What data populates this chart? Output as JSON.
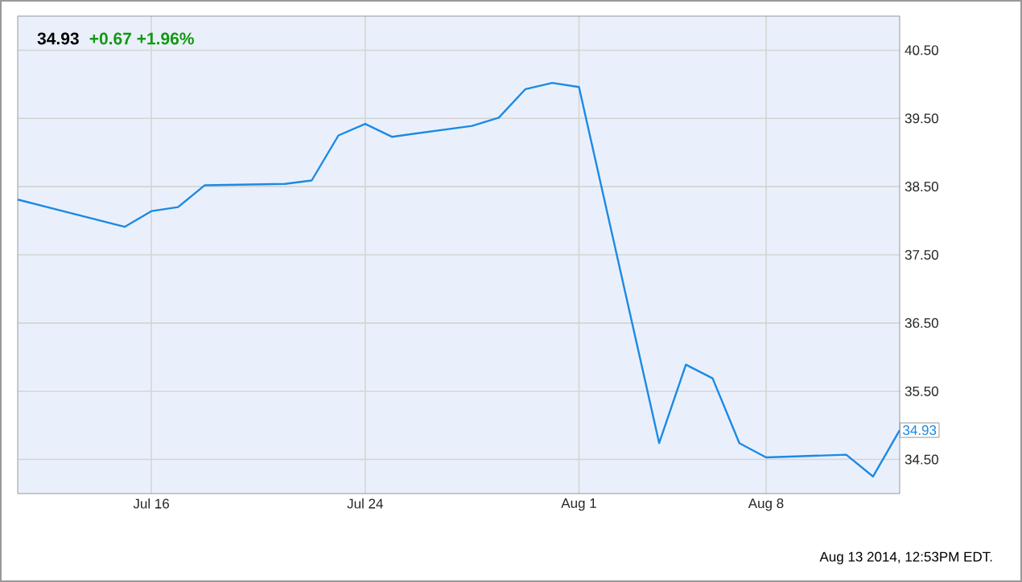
{
  "chart_data": {
    "type": "line",
    "title": "34.93",
    "subtitle": "+0.67  +1.96%",
    "annotations": [
      "Aug 13 2014, 12:53PM EDT."
    ],
    "x": [
      "2014-07-11",
      "2014-07-15",
      "2014-07-16",
      "2014-07-17",
      "2014-07-18",
      "2014-07-21",
      "2014-07-22",
      "2014-07-23",
      "2014-07-24",
      "2014-07-25",
      "2014-07-28",
      "2014-07-29",
      "2014-07-30",
      "2014-07-31",
      "2014-08-01",
      "2014-08-04",
      "2014-08-05",
      "2014-08-06",
      "2014-08-07",
      "2014-08-08",
      "2014-08-11",
      "2014-08-12",
      "2014-08-13"
    ],
    "values": [
      38.31,
      37.91,
      38.14,
      38.2,
      38.52,
      38.54,
      38.59,
      39.25,
      39.42,
      39.23,
      39.39,
      39.51,
      39.93,
      40.02,
      39.96,
      34.74,
      35.89,
      35.69,
      34.74,
      34.53,
      34.57,
      34.25,
      34.93
    ],
    "value_labels": [
      null,
      null,
      null,
      null,
      null,
      null,
      null,
      null,
      null,
      null,
      null,
      null,
      null,
      null,
      null,
      null,
      null,
      null,
      null,
      null,
      null,
      null,
      "34.93"
    ],
    "color": "#1a8ae6",
    "xlim": [
      "2014-07-11",
      "2014-08-13"
    ],
    "xticks": [
      {
        "value": "2014-07-16",
        "label": "Jul 16"
      },
      {
        "value": "2014-07-24",
        "label": "Jul 24"
      },
      {
        "value": "2014-08-01",
        "label": "Aug 1"
      },
      {
        "value": "2014-08-08",
        "label": "Aug 8"
      }
    ],
    "ylim": [
      34,
      41
    ],
    "yticks": [
      {
        "value": 34.5,
        "label": "34.50"
      },
      {
        "value": 35.5,
        "label": "35.50"
      },
      {
        "value": 36.5,
        "label": "36.50"
      },
      {
        "value": 37.5,
        "label": "37.50"
      },
      {
        "value": 38.5,
        "label": "38.50"
      },
      {
        "value": 39.5,
        "label": "39.50"
      },
      {
        "value": 40.5,
        "label": "40.50"
      }
    ],
    "grid": true,
    "marker": "none",
    "line_style": "solid"
  }
}
